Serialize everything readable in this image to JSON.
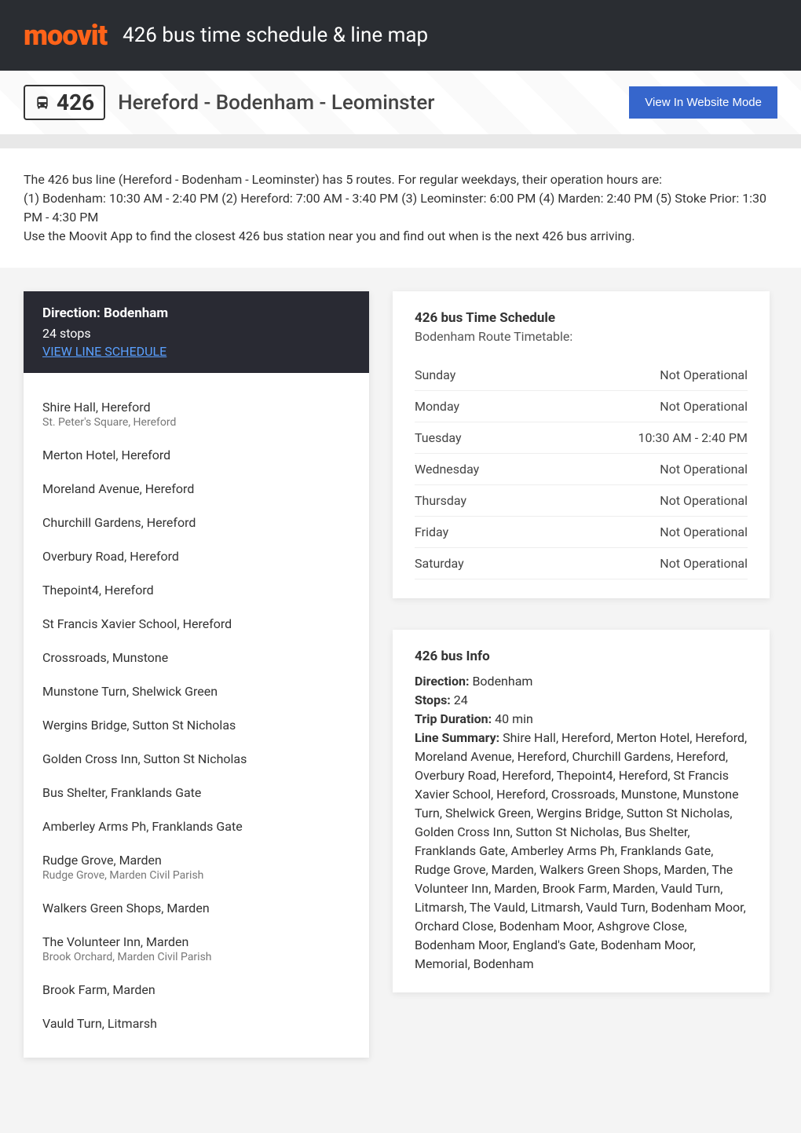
{
  "header": {
    "logo": "moovit",
    "title": "426 bus time schedule & line map"
  },
  "banner": {
    "line_number": "426",
    "route": "Hereford - Bodenham - Leominster",
    "view_mode_label": "View In Website Mode"
  },
  "intro": {
    "text": "The 426 bus line (Hereford - Bodenham - Leominster) has 5 routes. For regular weekdays, their operation hours are:\n(1) Bodenham: 10:30 AM - 2:40 PM (2) Hereford: 7:00 AM - 3:40 PM (3) Leominster: 6:00 PM (4) Marden: 2:40 PM (5) Stoke Prior: 1:30 PM - 4:30 PM\nUse the Moovit App to find the closest 426 bus station near you and find out when is the next 426 bus arriving."
  },
  "direction": {
    "title": "Direction: Bodenham",
    "stops_count": "24 stops",
    "view_schedule_label": "VIEW LINE SCHEDULE"
  },
  "stops": [
    {
      "name": "Shire Hall, Hereford",
      "sub": "St. Peter's Square, Hereford"
    },
    {
      "name": "Merton Hotel, Hereford",
      "sub": ""
    },
    {
      "name": "Moreland Avenue, Hereford",
      "sub": ""
    },
    {
      "name": "Churchill Gardens, Hereford",
      "sub": ""
    },
    {
      "name": "Overbury Road, Hereford",
      "sub": ""
    },
    {
      "name": "Thepoint4, Hereford",
      "sub": ""
    },
    {
      "name": "St Francis Xavier School, Hereford",
      "sub": ""
    },
    {
      "name": "Crossroads, Munstone",
      "sub": ""
    },
    {
      "name": "Munstone Turn, Shelwick Green",
      "sub": ""
    },
    {
      "name": "Wergins Bridge, Sutton St Nicholas",
      "sub": ""
    },
    {
      "name": "Golden Cross Inn, Sutton St Nicholas",
      "sub": ""
    },
    {
      "name": "Bus Shelter, Franklands Gate",
      "sub": ""
    },
    {
      "name": "Amberley Arms Ph, Franklands Gate",
      "sub": ""
    },
    {
      "name": "Rudge Grove, Marden",
      "sub": "Rudge Grove, Marden Civil Parish"
    },
    {
      "name": "Walkers Green Shops, Marden",
      "sub": ""
    },
    {
      "name": "The Volunteer Inn, Marden",
      "sub": "Brook Orchard, Marden Civil Parish"
    },
    {
      "name": "Brook Farm, Marden",
      "sub": ""
    },
    {
      "name": "Vauld Turn, Litmarsh",
      "sub": ""
    }
  ],
  "schedule": {
    "title": "426 bus Time Schedule",
    "subtitle": "Bodenham Route Timetable:",
    "rows": [
      {
        "day": "Sunday",
        "hours": "Not Operational"
      },
      {
        "day": "Monday",
        "hours": "Not Operational"
      },
      {
        "day": "Tuesday",
        "hours": "10:30 AM - 2:40 PM"
      },
      {
        "day": "Wednesday",
        "hours": "Not Operational"
      },
      {
        "day": "Thursday",
        "hours": "Not Operational"
      },
      {
        "day": "Friday",
        "hours": "Not Operational"
      },
      {
        "day": "Saturday",
        "hours": "Not Operational"
      }
    ]
  },
  "info": {
    "title": "426 bus Info",
    "direction_label": "Direction:",
    "direction_value": "Bodenham",
    "stops_label": "Stops:",
    "stops_value": "24",
    "duration_label": "Trip Duration:",
    "duration_value": "40 min",
    "summary_label": "Line Summary:",
    "summary_value": "Shire Hall, Hereford, Merton Hotel, Hereford, Moreland Avenue, Hereford, Churchill Gardens, Hereford, Overbury Road, Hereford, Thepoint4, Hereford, St Francis Xavier School, Hereford, Crossroads, Munstone, Munstone Turn, Shelwick Green, Wergins Bridge, Sutton St Nicholas, Golden Cross Inn, Sutton St Nicholas, Bus Shelter, Franklands Gate, Amberley Arms Ph, Franklands Gate, Rudge Grove, Marden, Walkers Green Shops, Marden, The Volunteer Inn, Marden, Brook Farm, Marden, Vauld Turn, Litmarsh, The Vauld, Litmarsh, Vauld Turn, Bodenham Moor, Orchard Close, Bodenham Moor, Ashgrove Close, Bodenham Moor, England's Gate, Bodenham Moor, Memorial, Bodenham"
  },
  "colors": {
    "header_bg": "#2a2d32",
    "accent": "#ff6319",
    "button_bg": "#3666cc",
    "dark_card": "#292a33",
    "link": "#5aa0ff"
  }
}
